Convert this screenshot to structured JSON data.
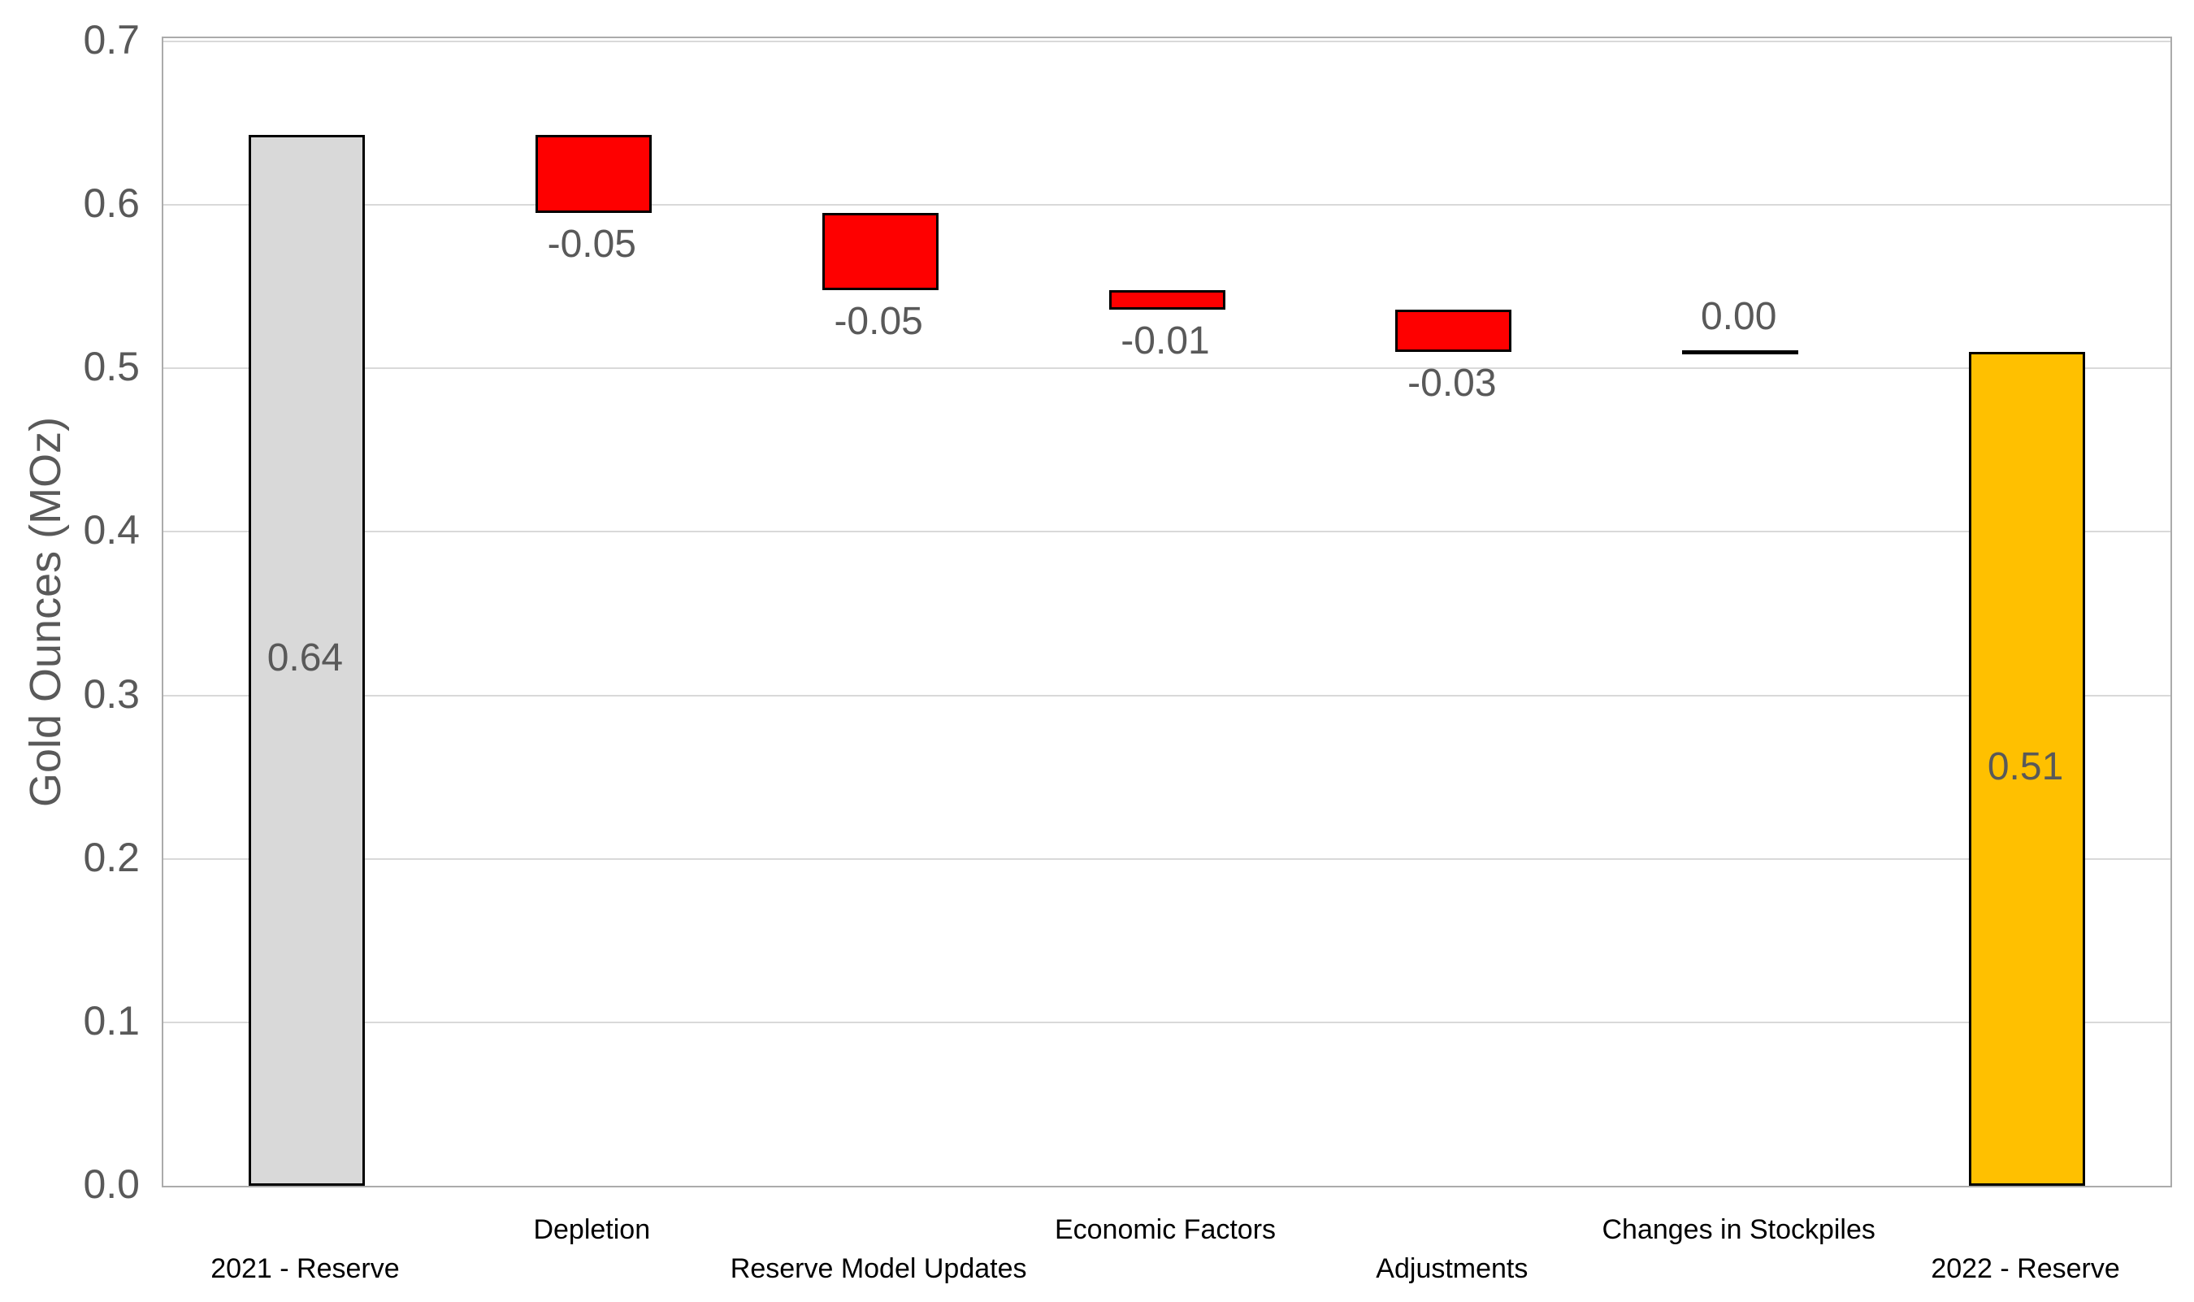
{
  "colors": {
    "total_gray": "#D9D9D9",
    "decrease_red": "#FE0000",
    "final_gold": "#FFC000",
    "bar_border": "#000000",
    "gridline": "#D9D9D9",
    "plot_border": "#ABABAB",
    "value_label": "#595959",
    "axis_label": "#595959",
    "category_label": "#000000"
  },
  "y_axis": {
    "title": "Gold Ounces (MOz)",
    "ticks": [
      "0.0",
      "0.1",
      "0.2",
      "0.3",
      "0.4",
      "0.5",
      "0.6",
      "0.7"
    ],
    "min": 0.0,
    "max": 0.7
  },
  "chart_data": {
    "type": "bar",
    "subtype": "waterfall",
    "title": "",
    "xlabel": "",
    "ylabel": "Gold Ounces (MOz)",
    "ylim": [
      0.0,
      0.7
    ],
    "grid": "horizontal",
    "legend": "none",
    "categories": [
      "2021 - Reserve",
      "Depletion",
      "Reserve Model Updates",
      "Economic Factors",
      "Adjustments",
      "Changes in Stockpiles",
      "2022 - Reserve"
    ],
    "values": [
      0.64,
      -0.05,
      -0.05,
      -0.01,
      -0.03,
      0.0,
      0.51
    ],
    "bars": [
      {
        "category": "2021 - Reserve",
        "label": "0.64",
        "role": "total",
        "color": "#D9D9D9",
        "start": 0.0,
        "end": 0.643,
        "label_pos": "center"
      },
      {
        "category": "Depletion",
        "label": "-0.05",
        "role": "decrease",
        "color": "#FE0000",
        "start": 0.643,
        "end": 0.595,
        "label_pos": "below"
      },
      {
        "category": "Reserve Model Updates",
        "label": "-0.05",
        "role": "decrease",
        "color": "#FE0000",
        "start": 0.595,
        "end": 0.548,
        "label_pos": "below"
      },
      {
        "category": "Economic Factors",
        "label": "-0.01",
        "role": "decrease",
        "color": "#FE0000",
        "start": 0.548,
        "end": 0.536,
        "label_pos": "below"
      },
      {
        "category": "Adjustments",
        "label": "-0.03",
        "role": "decrease",
        "color": "#FE0000",
        "start": 0.536,
        "end": 0.51,
        "label_pos": "below"
      },
      {
        "category": "Changes in Stockpiles",
        "label": "0.00",
        "role": "zero",
        "color": "#000000",
        "start": 0.51,
        "end": 0.51,
        "label_pos": "above"
      },
      {
        "category": "2022 - Reserve",
        "label": "0.51",
        "role": "total",
        "color": "#FFC000",
        "start": 0.0,
        "end": 0.51,
        "label_pos": "center"
      }
    ]
  }
}
